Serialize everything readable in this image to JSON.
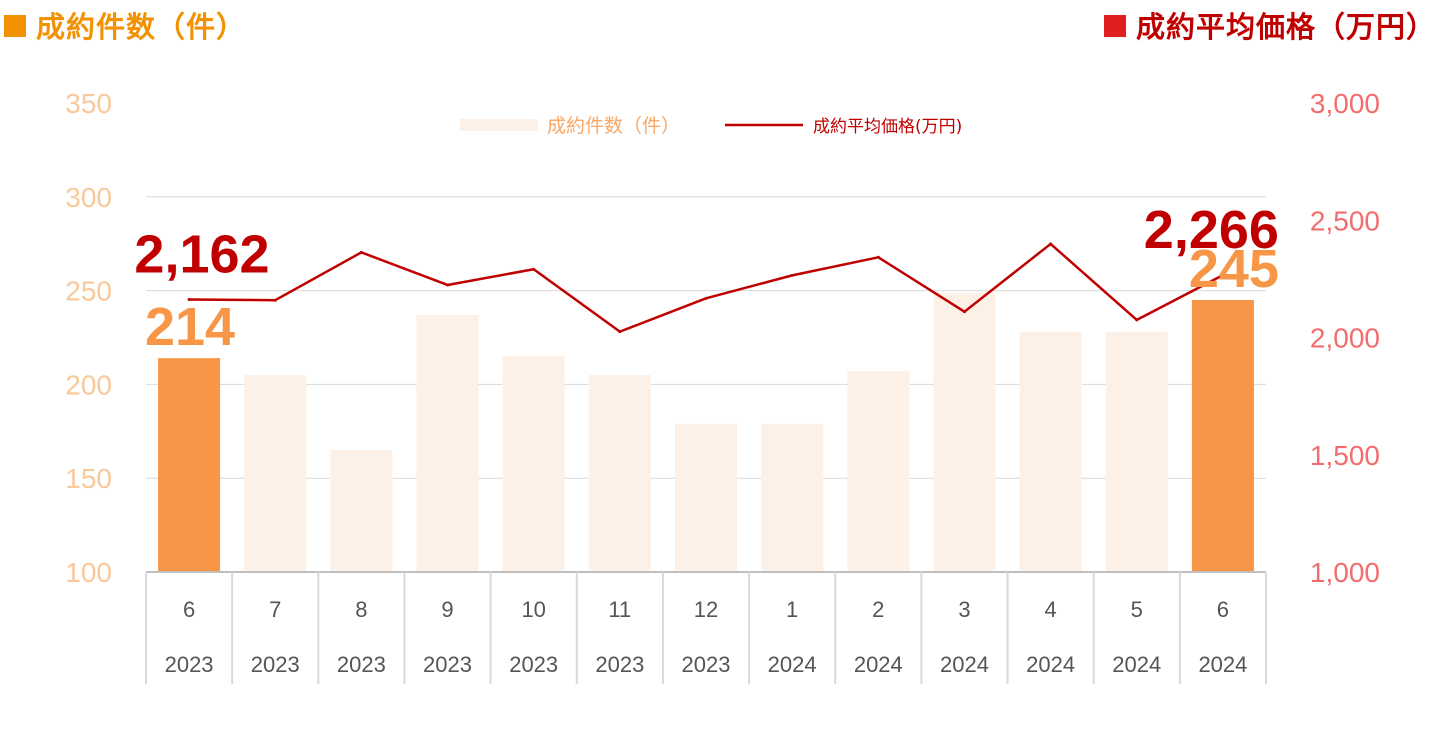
{
  "headers": {
    "left": "成約件数（件）",
    "right": "成約平均価格（万円）",
    "left_color": "#f39200",
    "right_color": "#c00000"
  },
  "colors": {
    "bar_highlight": "#f79646",
    "bar_normal": "#fdf0e6",
    "line": "#c00000",
    "callout_count": "#f79646",
    "callout_price": "#c00000"
  },
  "chart_data": {
    "type": "bar",
    "categories": [
      {
        "month": "6",
        "year": "2023"
      },
      {
        "month": "7",
        "year": "2023"
      },
      {
        "month": "8",
        "year": "2023"
      },
      {
        "month": "9",
        "year": "2023"
      },
      {
        "month": "10",
        "year": "2023"
      },
      {
        "month": "11",
        "year": "2023"
      },
      {
        "month": "12",
        "year": "2023"
      },
      {
        "month": "1",
        "year": "2024"
      },
      {
        "month": "2",
        "year": "2024"
      },
      {
        "month": "3",
        "year": "2024"
      },
      {
        "month": "4",
        "year": "2024"
      },
      {
        "month": "5",
        "year": "2024"
      },
      {
        "month": "6",
        "year": "2024"
      }
    ],
    "series": [
      {
        "name": "成約件数（件）",
        "type": "bar",
        "axis": "left",
        "values": [
          214,
          205,
          165,
          237,
          215,
          205,
          179,
          179,
          207,
          249,
          228,
          228,
          245
        ]
      },
      {
        "name": "成約平均価格(万円)",
        "type": "line",
        "axis": "right",
        "values": [
          2162,
          2159,
          2363,
          2224,
          2291,
          2025,
          2167,
          2265,
          2342,
          2110,
          2399,
          2075,
          2266
        ]
      }
    ],
    "highlight_indices": [
      0,
      12
    ],
    "y_left": {
      "ylim": [
        100,
        350
      ],
      "ticks": [
        "100",
        "150",
        "200",
        "250",
        "300",
        "350"
      ]
    },
    "y_right": {
      "ylim": [
        1000,
        3000
      ],
      "ticks": [
        "1,000",
        "1,500",
        "2,000",
        "2,500",
        "3,000"
      ]
    },
    "grid": true,
    "legend_position": "top",
    "annotations": [
      {
        "series": "price",
        "index": 0,
        "text": "2,162"
      },
      {
        "series": "count",
        "index": 0,
        "text": "214"
      },
      {
        "series": "price",
        "index": 12,
        "text": "2,266"
      },
      {
        "series": "count",
        "index": 12,
        "text": "245"
      }
    ]
  }
}
